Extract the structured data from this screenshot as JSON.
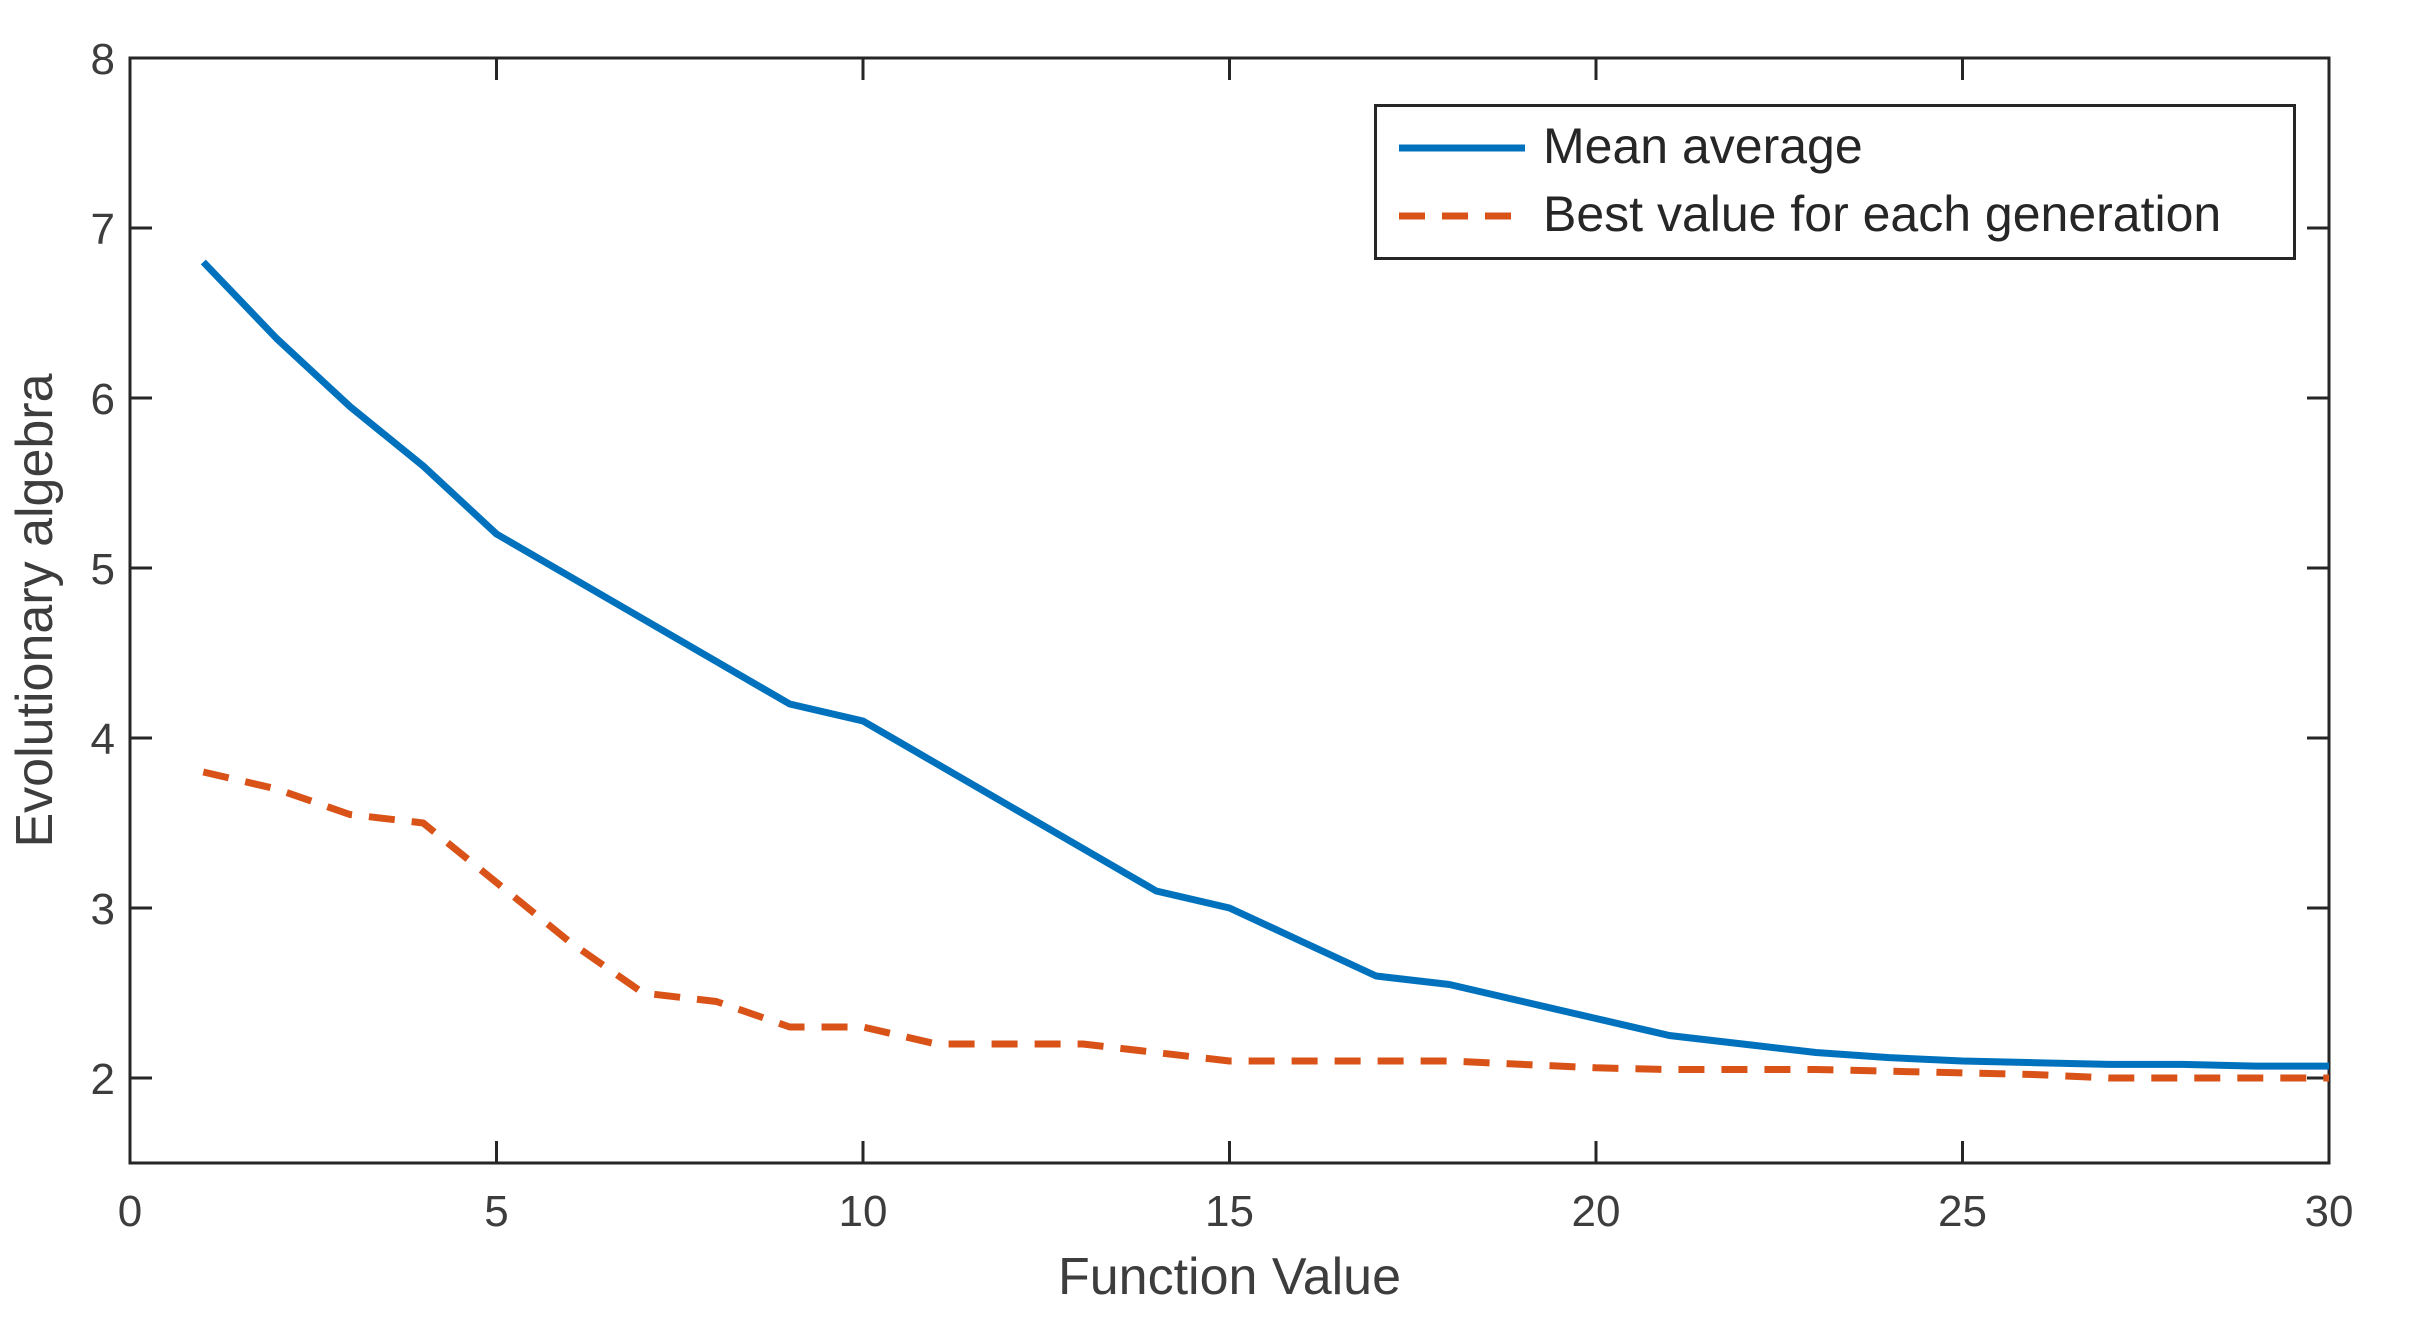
{
  "figure": {
    "background_color": "#ffffff",
    "axis_line_color": "#262626",
    "text_color": "#3d3d3d"
  },
  "chart_data": {
    "type": "line",
    "title": "",
    "xlabel": "Function Value",
    "ylabel": "Evolutionary algebra",
    "xlim": [
      0,
      30
    ],
    "ylim": [
      1.5,
      8
    ],
    "xticks": [
      0,
      5,
      10,
      15,
      20,
      25,
      30
    ],
    "yticks": [
      2,
      3,
      4,
      5,
      6,
      7,
      8
    ],
    "grid": false,
    "legend_position": "top-right",
    "x": [
      1,
      2,
      3,
      4,
      5,
      6,
      7,
      8,
      9,
      10,
      11,
      12,
      13,
      14,
      15,
      16,
      17,
      18,
      19,
      20,
      21,
      22,
      23,
      24,
      25,
      26,
      27,
      28,
      29,
      30
    ],
    "series": [
      {
        "id": "mean-average",
        "name": "Mean average",
        "color": "#0072BD",
        "style": "solid",
        "values": [
          6.8,
          6.35,
          5.95,
          5.6,
          5.2,
          4.95,
          4.7,
          4.45,
          4.2,
          4.1,
          3.85,
          3.6,
          3.35,
          3.1,
          3.0,
          2.8,
          2.6,
          2.55,
          2.45,
          2.35,
          2.25,
          2.2,
          2.15,
          2.12,
          2.1,
          2.09,
          2.08,
          2.08,
          2.07,
          2.07
        ]
      },
      {
        "id": "best-value",
        "name": "Best value for each generation",
        "color": "#D95319",
        "style": "dashed",
        "values": [
          3.8,
          3.7,
          3.55,
          3.5,
          3.15,
          2.8,
          2.5,
          2.45,
          2.3,
          2.3,
          2.2,
          2.2,
          2.2,
          2.15,
          2.1,
          2.1,
          2.1,
          2.1,
          2.08,
          2.06,
          2.05,
          2.05,
          2.05,
          2.04,
          2.03,
          2.02,
          2.0,
          2.0,
          2.0,
          2.0
        ]
      }
    ]
  }
}
